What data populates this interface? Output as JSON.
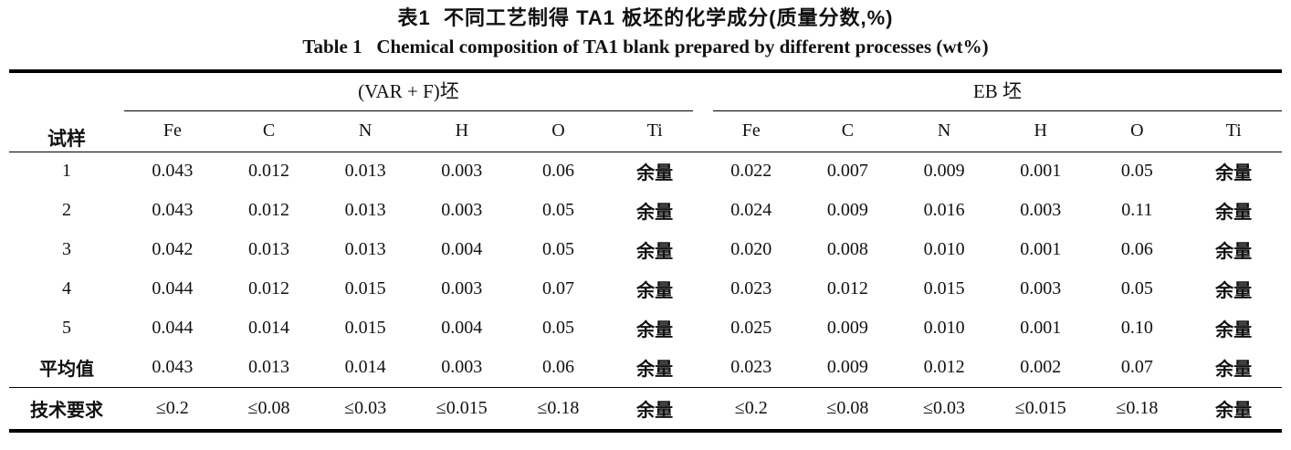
{
  "titles": {
    "zh": "表1  不同工艺制得 TA1 板坯的化学成分(质量分数,%)",
    "en": "Table 1   Chemical composition of TA1 blank prepared by different processes (wt%)"
  },
  "table": {
    "sample_header": "试样",
    "groups": [
      {
        "label": "(VAR + F)坯"
      },
      {
        "label": "EB 坯"
      }
    ],
    "element_columns": [
      "Fe",
      "C",
      "N",
      "H",
      "O",
      "Ti"
    ],
    "rows": [
      {
        "label": "1",
        "values": [
          "0.043",
          "0.012",
          "0.013",
          "0.003",
          "0.06",
          "余量",
          "0.022",
          "0.007",
          "0.009",
          "0.001",
          "0.05",
          "余量"
        ]
      },
      {
        "label": "2",
        "values": [
          "0.043",
          "0.012",
          "0.013",
          "0.003",
          "0.05",
          "余量",
          "0.024",
          "0.009",
          "0.016",
          "0.003",
          "0.11",
          "余量"
        ]
      },
      {
        "label": "3",
        "values": [
          "0.042",
          "0.013",
          "0.013",
          "0.004",
          "0.05",
          "余量",
          "0.020",
          "0.008",
          "0.010",
          "0.001",
          "0.06",
          "余量"
        ]
      },
      {
        "label": "4",
        "values": [
          "0.044",
          "0.012",
          "0.015",
          "0.003",
          "0.07",
          "余量",
          "0.023",
          "0.012",
          "0.015",
          "0.003",
          "0.05",
          "余量"
        ]
      },
      {
        "label": "5",
        "values": [
          "0.044",
          "0.014",
          "0.015",
          "0.004",
          "0.05",
          "余量",
          "0.025",
          "0.009",
          "0.010",
          "0.001",
          "0.10",
          "余量"
        ]
      },
      {
        "label": "平均值",
        "values": [
          "0.043",
          "0.013",
          "0.014",
          "0.003",
          "0.06",
          "余量",
          "0.023",
          "0.009",
          "0.012",
          "0.002",
          "0.07",
          "余量"
        ]
      },
      {
        "label": "技术要求",
        "values": [
          "≤0.2",
          "≤0.08",
          "≤0.03",
          "≤0.015",
          "≤0.18",
          "余量",
          "≤0.2",
          "≤0.08",
          "≤0.03",
          "≤0.015",
          "≤0.18",
          "余量"
        ]
      }
    ]
  },
  "colors": {
    "text": "#111111",
    "rule": "#000000",
    "background": "#ffffff"
  }
}
